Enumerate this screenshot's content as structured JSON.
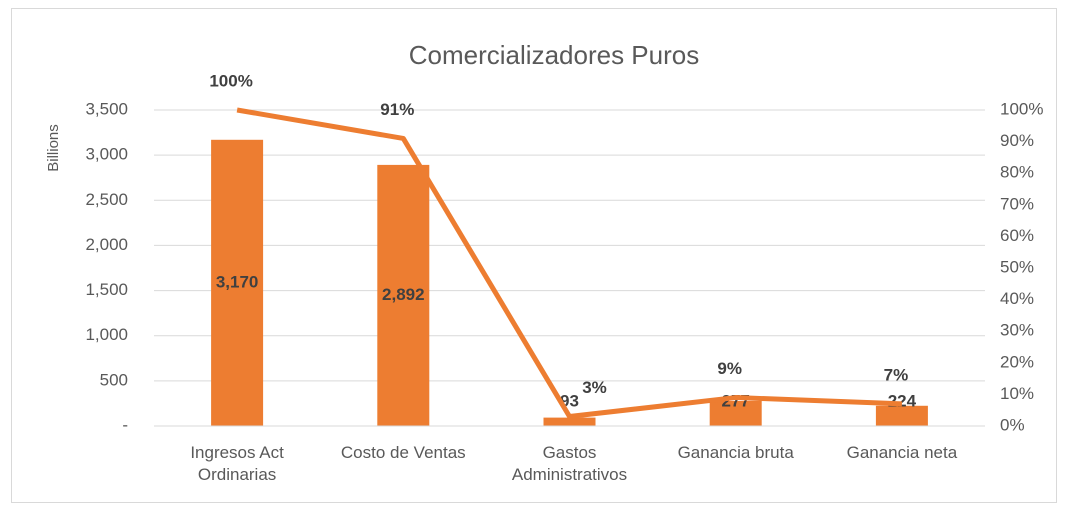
{
  "chart_data": {
    "type": "bar",
    "title": "Comercializadores Puros",
    "y_label": "Billions",
    "categories": [
      "Ingresos Act Ordinarias",
      "Costo de Ventas",
      "Gastos Administrativos",
      "Ganancia bruta",
      "Ganancia neta"
    ],
    "series": [
      {
        "type": "bar",
        "color": "#ed7d31",
        "values": [
          3170,
          2892,
          93,
          277,
          224
        ],
        "value_labels": [
          "3,170",
          "2,892",
          "93",
          "277",
          "224"
        ]
      },
      {
        "type": "line",
        "axis": "y2",
        "color": "#ed7d31",
        "values": [
          100,
          91,
          3,
          9,
          7
        ],
        "value_labels": [
          "100%",
          "91%",
          "3%",
          "9%",
          "7%"
        ]
      }
    ],
    "ylim": [
      0,
      3500
    ],
    "yticks": [
      {
        "value": 0,
        "label": "-"
      },
      500,
      {
        "value": 1000,
        "label": "1,000"
      },
      {
        "value": 1500,
        "label": "1,500"
      },
      {
        "value": 2000,
        "label": "2,000"
      },
      {
        "value": 2500,
        "label": "2,500"
      },
      {
        "value": 3000,
        "label": "3,000"
      },
      {
        "value": 3500,
        "label": "3,500"
      }
    ],
    "y2lim": [
      0,
      100
    ],
    "y2ticks": [
      {
        "value": 0,
        "label": "0%"
      },
      {
        "value": 10,
        "label": "10%"
      },
      {
        "value": 20,
        "label": "20%"
      },
      {
        "value": 30,
        "label": "30%"
      },
      {
        "value": 40,
        "label": "40%"
      },
      {
        "value": 50,
        "label": "50%"
      },
      {
        "value": 60,
        "label": "60%"
      },
      {
        "value": 70,
        "label": "70%"
      },
      {
        "value": 80,
        "label": "80%"
      },
      {
        "value": 90,
        "label": "90%"
      },
      {
        "value": 100,
        "label": "100%"
      }
    ],
    "grid": true
  }
}
